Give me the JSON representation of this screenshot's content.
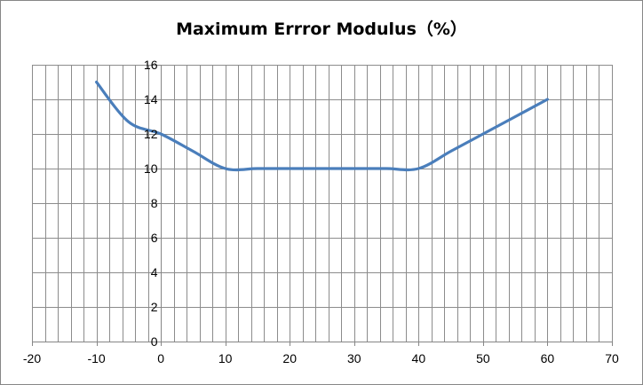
{
  "chart_data": {
    "type": "line",
    "title": "Maximum Errror Modulus（%）",
    "xlabel": "",
    "ylabel": "",
    "xlim": [
      -20,
      70
    ],
    "ylim": [
      0,
      16
    ],
    "x_ticks": [
      -20,
      -10,
      0,
      10,
      20,
      30,
      40,
      50,
      60,
      70
    ],
    "y_ticks": [
      0,
      2,
      4,
      6,
      8,
      10,
      12,
      14,
      16
    ],
    "minor_x_step": 2,
    "grid": true,
    "legend": "none",
    "series": [
      {
        "color": "#4A7EBB",
        "smooth": true,
        "points": [
          [
            -10,
            15
          ],
          [
            -5,
            12.7
          ],
          [
            0,
            12
          ],
          [
            5,
            11
          ],
          [
            10,
            10
          ],
          [
            15,
            10
          ],
          [
            20,
            10
          ],
          [
            25,
            10
          ],
          [
            30,
            10
          ],
          [
            35,
            10
          ],
          [
            40,
            10
          ],
          [
            45,
            11
          ],
          [
            50,
            12
          ],
          [
            55,
            13
          ],
          [
            60,
            14
          ]
        ]
      }
    ],
    "colors": {
      "grid": "#8C8C8C",
      "axis": "#868686",
      "frame": "#868686"
    }
  }
}
